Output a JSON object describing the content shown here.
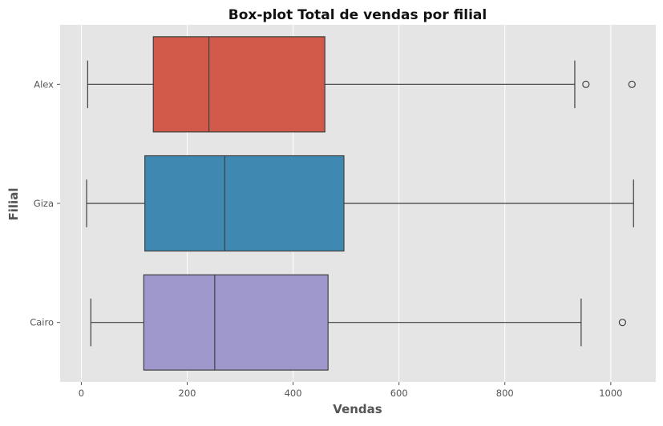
{
  "chart_data": {
    "type": "boxplot",
    "orientation": "horizontal",
    "title": "Box-plot Total de vendas por filial",
    "xlabel": "Vendas",
    "ylabel": "Filial",
    "xlim": [
      -40,
      1085
    ],
    "xticks": [
      0,
      200,
      400,
      600,
      800,
      1000
    ],
    "grid": true,
    "legend": false,
    "colors": {
      "background": "#e5e5e5",
      "grid": "#ffffff",
      "line": "#3f3f3f",
      "tick_label": "#555555",
      "title": "#111111"
    },
    "categories": [
      "Alex",
      "Giza",
      "Cairo"
    ],
    "boxes": [
      {
        "name": "Alex",
        "whislo": 12,
        "q1": 136,
        "med": 241,
        "q3": 460,
        "whishi": 932,
        "fliers": [
          953,
          1040
        ],
        "color": "#d1594a"
      },
      {
        "name": "Giza",
        "whislo": 10,
        "q1": 120,
        "med": 271,
        "q3": 496,
        "whishi": 1043,
        "fliers": [],
        "color": "#3f88b2"
      },
      {
        "name": "Cairo",
        "whislo": 18,
        "q1": 118,
        "med": 252,
        "q3": 466,
        "whishi": 944,
        "fliers": [
          1022
        ],
        "color": "#9e97cc"
      }
    ]
  }
}
